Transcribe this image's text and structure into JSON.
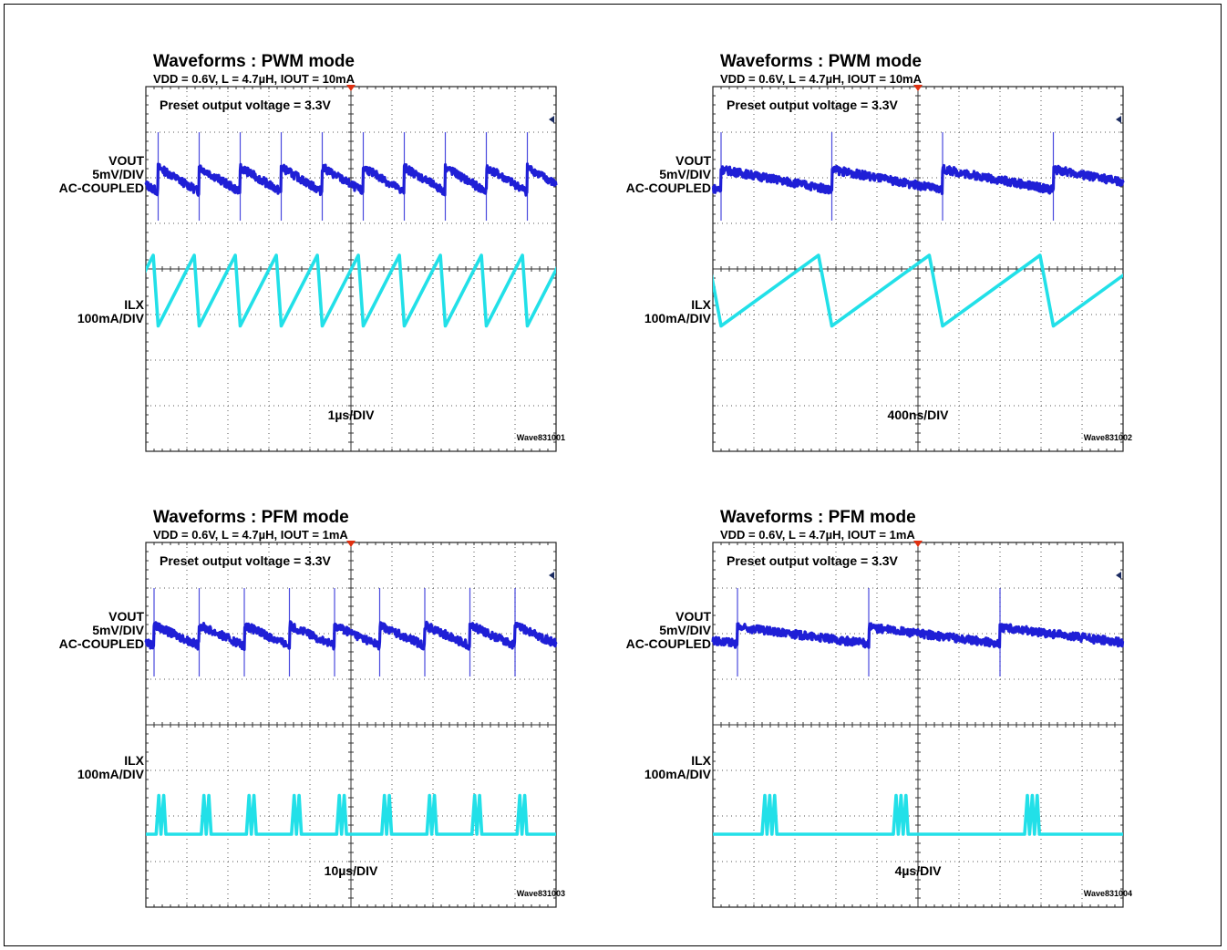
{
  "chart_data": [
    {
      "type": "line",
      "title": "Waveforms : PWM mode",
      "subtitle": "VDD = 0.6V, L = 4.7µH, IOUT = 10mA",
      "annotation": "Preset output voltage = 3.3V",
      "xlabel": "1µs/DIV",
      "wave_id": "Wave831001",
      "grid": true,
      "channels": [
        {
          "label_lines": [
            "VOUT",
            "5mV/DIV",
            "AC-COUPLED"
          ],
          "color": "#1f1fd6",
          "kind": "ripple",
          "period_div": 1.0,
          "phase": 0.3,
          "amplitude_div": 0.3
        },
        {
          "label_lines": [
            "ILX",
            "100mA/DIV"
          ],
          "color": "#22e0e8",
          "kind": "sawtooth",
          "period_div": 1.0,
          "phase": 0.3,
          "low_div": -0.35,
          "high_div": 1.2
        }
      ]
    },
    {
      "type": "line",
      "title": "Waveforms : PWM mode",
      "subtitle": "VDD = 0.6V, L = 4.7µH, IOUT = 10mA",
      "annotation": "Preset output voltage = 3.3V",
      "xlabel": "400ns/DIV",
      "wave_id": "Wave831002",
      "grid": true,
      "channels": [
        {
          "label_lines": [
            "VOUT",
            "5mV/DIV",
            "AC-COUPLED"
          ],
          "color": "#1f1fd6",
          "kind": "ripple",
          "period_div": 2.7,
          "phase": 0.2,
          "amplitude_div": 0.25
        },
        {
          "label_lines": [
            "ILX",
            "100mA/DIV"
          ],
          "color": "#22e0e8",
          "kind": "sawtooth",
          "period_div": 2.7,
          "phase": 0.2,
          "low_div": -0.35,
          "high_div": 1.2
        }
      ]
    },
    {
      "type": "line",
      "title": "Waveforms : PFM mode",
      "subtitle": "VDD = 0.6V, L = 4.7µH, IOUT = 1mA",
      "annotation": "Preset output voltage = 3.3V",
      "xlabel": "10µs/DIV",
      "wave_id": "Wave831003",
      "grid": true,
      "channels": [
        {
          "label_lines": [
            "VOUT",
            "5mV/DIV",
            "AC-COUPLED"
          ],
          "color": "#1f1fd6",
          "kind": "ripple",
          "period_div": 1.1,
          "phase": 0.2,
          "amplitude_div": 0.25
        },
        {
          "label_lines": [
            "ILX",
            "100mA/DIV"
          ],
          "color": "#22e0e8",
          "kind": "bursts",
          "period_div": 1.1,
          "phase": 0.25,
          "pulses": 2,
          "low_div": 0.0,
          "high_div": 0.85
        }
      ]
    },
    {
      "type": "line",
      "title": "Waveforms : PFM mode",
      "subtitle": "VDD = 0.6V, L = 4.7µH, IOUT = 1mA",
      "annotation": "Preset output voltage = 3.3V",
      "xlabel": "4µs/DIV",
      "wave_id": "Wave831004",
      "grid": true,
      "channels": [
        {
          "label_lines": [
            "VOUT",
            "5mV/DIV",
            "AC-COUPLED"
          ],
          "color": "#1f1fd6",
          "kind": "ripple",
          "period_div": 3.2,
          "phase": 0.6,
          "amplitude_div": 0.2
        },
        {
          "label_lines": [
            "ILX",
            "100mA/DIV"
          ],
          "color": "#22e0e8",
          "kind": "bursts",
          "period_div": 3.2,
          "phase": 1.2,
          "pulses": 3,
          "low_div": 0.0,
          "high_div": 0.85
        }
      ]
    }
  ]
}
